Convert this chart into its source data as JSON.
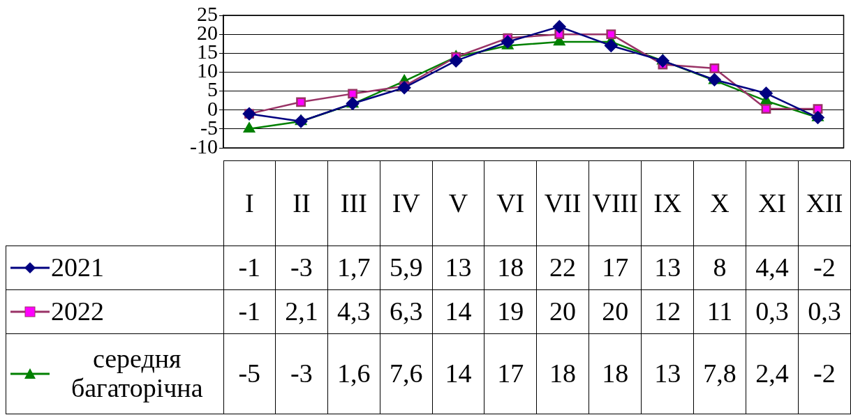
{
  "chart_data": {
    "type": "line",
    "categories": [
      "I",
      "II",
      "III",
      "IV",
      "V",
      "VI",
      "VII",
      "VIII",
      "IX",
      "X",
      "XI",
      "XII"
    ],
    "series": [
      {
        "name": "2021",
        "color": "#000080",
        "marker": "diamond",
        "values": [
          -1,
          -3,
          1.7,
          5.9,
          13,
          18,
          22,
          17,
          13,
          8,
          4.4,
          -2
        ],
        "value_labels": [
          "-1",
          "-3",
          "1,7",
          "5,9",
          "13",
          "18",
          "22",
          "17",
          "13",
          "8",
          "4,4",
          "-2"
        ]
      },
      {
        "name": "2022",
        "color": "#993366",
        "marker": "square",
        "values": [
          -1,
          2.1,
          4.3,
          6.3,
          14,
          19,
          20,
          20,
          12,
          11,
          0.3,
          0.3
        ],
        "value_labels": [
          "-1",
          "2,1",
          "4,3",
          "6,3",
          "14",
          "19",
          "20",
          "20",
          "12",
          "11",
          "0,3",
          "0,3"
        ]
      },
      {
        "name": "середня багаторічна",
        "color": "#008000",
        "marker": "triangle",
        "values": [
          -5,
          -3,
          1.6,
          7.6,
          14,
          17,
          18,
          18,
          13,
          7.8,
          2.4,
          -2
        ],
        "value_labels": [
          "-5",
          "-3",
          "1,6",
          "7,6",
          "14",
          "17",
          "18",
          "18",
          "13",
          "7,8",
          "2,4",
          "-2"
        ]
      }
    ],
    "ylim": [
      -10,
      25
    ],
    "yticks": [
      -10,
      -5,
      0,
      5,
      10,
      15,
      20,
      25
    ],
    "grid": "y",
    "legend": "bottom left",
    "line_style": "solid"
  }
}
